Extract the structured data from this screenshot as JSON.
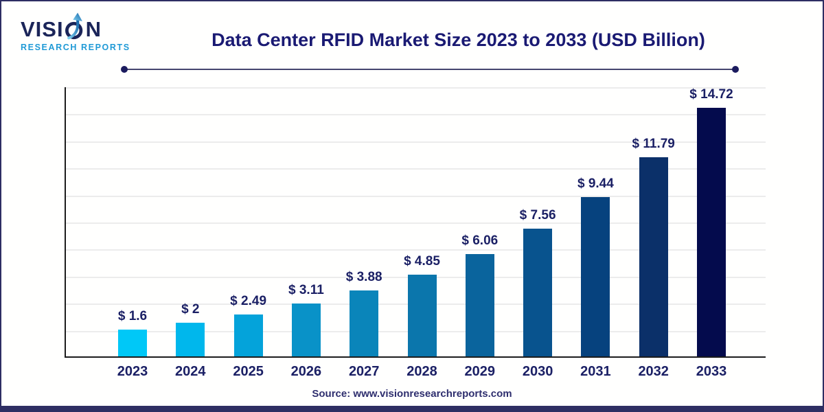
{
  "logo": {
    "brand_prefix": "VISI",
    "brand_suffix": "N",
    "subtitle": "RESEARCH REPORTS",
    "brand_color": "#1b2559",
    "subtitle_color": "#1f9ad6"
  },
  "header": {
    "title": "Data Center RFID Market Size 2023 to 2033 (USD Billion)",
    "title_color": "#1a1a73"
  },
  "footer": {
    "source": "Source: www.visionresearchreports.com"
  },
  "chart_data": {
    "type": "bar",
    "title": "Data Center RFID Market Size 2023 to 2033 (USD Billion)",
    "xlabel": "",
    "ylabel": "",
    "unit": "USD Billion",
    "categories": [
      "2023",
      "2024",
      "2025",
      "2026",
      "2027",
      "2028",
      "2029",
      "2030",
      "2031",
      "2032",
      "2033"
    ],
    "values": [
      1.6,
      2,
      2.49,
      3.11,
      3.88,
      4.85,
      6.06,
      7.56,
      9.44,
      11.79,
      14.72
    ],
    "value_labels": [
      "$ 1.6",
      "$ 2",
      "$ 2.49",
      "$ 3.11",
      "$ 3.88",
      "$ 4.85",
      "$ 6.06",
      "$ 7.56",
      "$ 9.44",
      "$ 11.79",
      "$ 14.72"
    ],
    "bar_colors": [
      "#00c8f7",
      "#00b7ec",
      "#04a3da",
      "#0992c8",
      "#0a85ba",
      "#0b76ac",
      "#0a649d",
      "#08538e",
      "#06427e",
      "#0b3069",
      "#040b4d"
    ],
    "ylim": [
      0,
      16
    ],
    "grid": true,
    "gridlines": 10,
    "legend": "none",
    "y_axis_labels_visible": false
  }
}
